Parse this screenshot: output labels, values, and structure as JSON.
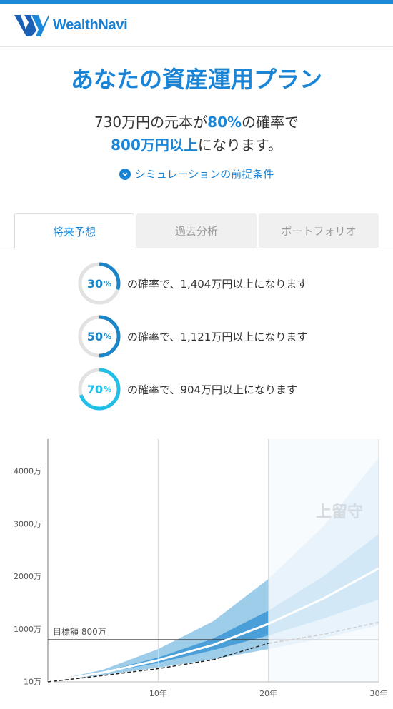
{
  "header": {
    "logo_text": "WealthNavi",
    "logo_icon": "wealthnavi-w-icon",
    "accent": "#1a8ad8"
  },
  "title": "あなたの資産運用プラン",
  "summary": {
    "line1_a": "730万円の元本が",
    "line1_hl": "80%",
    "line1_b": "の確率で",
    "line2_hl": "800万円以上",
    "line2_b": "になります。"
  },
  "simulation_link": {
    "label": "シミュレーションの前提条件",
    "icon": "chevron-down-circle-icon"
  },
  "tabs": [
    {
      "label": "将来予想",
      "active": true
    },
    {
      "label": "過去分析",
      "active": false
    },
    {
      "label": "ポートフォリオ",
      "active": false
    }
  ],
  "probabilities": [
    {
      "percent": "30",
      "unit": "%",
      "text": "の確率で、1,404万円以上になります",
      "fraction": 0.3,
      "color": "#1a85c8"
    },
    {
      "percent": "50",
      "unit": "%",
      "text": "の確率で、1,121万円以上になります",
      "fraction": 0.5,
      "color": "#1a85c8"
    },
    {
      "percent": "70",
      "unit": "%",
      "text": "の確率で、904万円以上になります",
      "fraction": 0.7,
      "color": "#22bfe8"
    }
  ],
  "chart_data": {
    "type": "area",
    "y_ticks": [
      {
        "value": 10,
        "label": "10万"
      },
      {
        "value": 1000,
        "label": "1000万"
      },
      {
        "value": 2000,
        "label": "2000万"
      },
      {
        "value": 3000,
        "label": "3000万"
      },
      {
        "value": 4000,
        "label": "4000万"
      }
    ],
    "x_ticks": [
      {
        "value": 10,
        "label": "10年"
      },
      {
        "value": 20,
        "label": "20年"
      },
      {
        "value": 30,
        "label": "30年"
      }
    ],
    "xlim": [
      0,
      30
    ],
    "ylim": [
      0,
      4600
    ],
    "target": {
      "value": 800,
      "label": "目標額 800万"
    },
    "watermark": "上留守",
    "bands": {
      "x": [
        0,
        5,
        10,
        15,
        20,
        25,
        30
      ],
      "outer_low": [
        0,
        130,
        270,
        430,
        620,
        830,
        1070
      ],
      "outer_high": [
        0,
        230,
        620,
        1150,
        1950,
        2950,
        4250
      ],
      "inner_low": [
        0,
        165,
        360,
        600,
        880,
        1200,
        1560
      ],
      "inner_high": [
        0,
        190,
        460,
        820,
        1350,
        2000,
        2800
      ],
      "median": [
        0,
        175,
        410,
        700,
        1100,
        1580,
        2150
      ],
      "principal": [
        0,
        120,
        250,
        420,
        730,
        900,
        1130
      ]
    },
    "colors": {
      "outer": "#9ecdea",
      "inner": "#4a9fd8",
      "median": "#ffffff",
      "future_outer": "#e8f3fb",
      "future_inner": "#d2e8f6"
    }
  }
}
